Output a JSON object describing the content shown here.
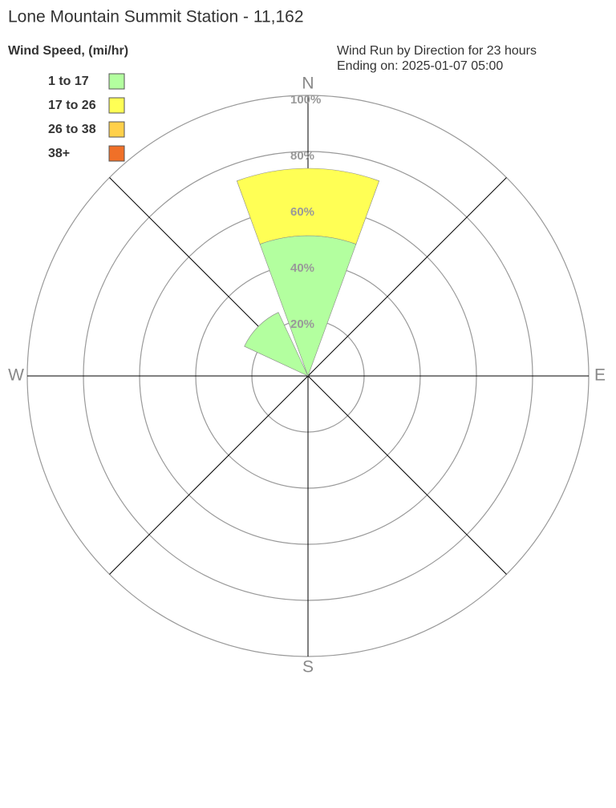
{
  "chart_data": {
    "type": "windrose",
    "title": "Lone Mountain Summit Station - 11,162",
    "subtitle": "Wind Run by Direction for 23 hours",
    "period": "Ending on: 2025-01-07 05:00",
    "legend_title": "Wind Speed, (mi/hr)",
    "categories": [
      "N",
      null,
      "E",
      null,
      "S",
      null,
      "W",
      null
    ],
    "series": [
      {
        "name": "1 to 17",
        "color": "#b3ff9f",
        "values": [
          50,
          0,
          0,
          0,
          0,
          0,
          0,
          25
        ]
      },
      {
        "name": "17 to 26",
        "color": "#ffff55",
        "values": [
          24,
          0,
          0,
          0,
          0,
          0,
          0,
          0
        ]
      },
      {
        "name": "26 to 38",
        "color": "#ffd04a",
        "values": [
          0,
          0,
          0,
          0,
          0,
          0,
          0,
          0
        ]
      },
      {
        "name": "38+",
        "color": "#f07028",
        "values": [
          0,
          0,
          0,
          0,
          0,
          0,
          0,
          0
        ]
      }
    ],
    "rlim": [
      0,
      100
    ],
    "rticks": [
      {
        "value": 20,
        "label": "20%"
      },
      {
        "value": 40,
        "label": "40%"
      },
      {
        "value": 60,
        "label": "60%"
      },
      {
        "value": 80,
        "label": "80%"
      },
      {
        "value": 100,
        "label": "100%"
      }
    ]
  }
}
